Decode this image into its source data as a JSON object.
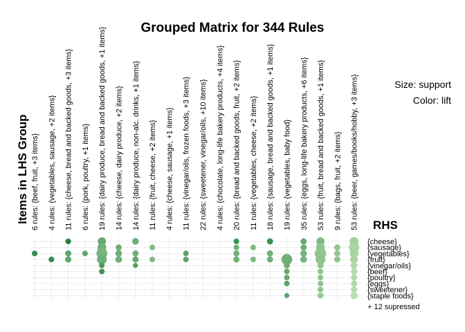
{
  "chart_data": {
    "type": "scatter",
    "title": "Grouped Matrix for 344 Rules",
    "xlabel": "Items in LHS Group",
    "ylabel": "RHS",
    "size_legend": "Size: support",
    "color_legend": "Color: lift",
    "grid": true,
    "lhs_groups": [
      "6 rules: {beef, fruit, +3 items}",
      "4 rules: {vegetables, sausage, +2 items}",
      "11 rules: {cheese, bread and backed goods, +3 items}",
      "6 rules: {pork, poultry, +1 items}",
      "19 rules: {dairy produce, bread and backed goods, +1 items}",
      "14 rules: {cheese, dairy produce, +2 items}",
      "14 rules: {dairy produce, non-alc. drinks, +1 items}",
      "11 rules: {fruit, cheese, +2 items}",
      "4 rules: {cheese, sausage, +1 items}",
      "11 rules: {vinegar/oils, frozen foods, +3 items}",
      "22 rules: {sweetener, vinegar/oils, +10 items}",
      "4 rules: {chocolate, long-life bakery products, +4 items}",
      "20 rules: {bread and backed goods, fruit, +2 items}",
      "11 rules: {vegetables, cheese, +2 items}",
      "18 rules: {sausage, bread and backed goods, +1 items}",
      "19 rules: {vegetables, baby food}",
      "35 rules: {eggs, long-life bakery products, +6 items}",
      "53 rules: {fruit, bread and backed goods, +1 items}",
      "9 rules: {bags, fruit, +2 items}",
      "53 rules: {beer, games/books/hobby, +3 items}"
    ],
    "rhs_items": [
      "{cheese}",
      "{sausage}",
      "{vegetables}",
      "{fruit}",
      "{vinegar/oils}",
      "{beef}",
      "{poultry}",
      "{eggs}",
      "{sweetener}",
      "{staple foods}"
    ],
    "rhs_note": "+ 12 supressed",
    "points": [
      {
        "lhs": 0,
        "rhs": 2,
        "support": 0.3,
        "lift": 0.85
      },
      {
        "lhs": 1,
        "rhs": 3,
        "support": 0.3,
        "lift": 0.85
      },
      {
        "lhs": 2,
        "rhs": 0,
        "support": 0.3,
        "lift": 0.95
      },
      {
        "lhs": 2,
        "rhs": 2,
        "support": 0.35,
        "lift": 0.6
      },
      {
        "lhs": 2,
        "rhs": 3,
        "support": 0.35,
        "lift": 0.6
      },
      {
        "lhs": 3,
        "rhs": 2,
        "support": 0.3,
        "lift": 0.6
      },
      {
        "lhs": 4,
        "rhs": 0,
        "support": 0.55,
        "lift": 0.55
      },
      {
        "lhs": 4,
        "rhs": 1,
        "support": 0.6,
        "lift": 0.5
      },
      {
        "lhs": 4,
        "rhs": 2,
        "support": 0.8,
        "lift": 0.45
      },
      {
        "lhs": 4,
        "rhs": 3,
        "support": 0.7,
        "lift": 0.5
      },
      {
        "lhs": 4,
        "rhs": 4,
        "support": 0.3,
        "lift": 0.7
      },
      {
        "lhs": 4,
        "rhs": 5,
        "support": 0.3,
        "lift": 0.75
      },
      {
        "lhs": 5,
        "rhs": 1,
        "support": 0.35,
        "lift": 0.5
      },
      {
        "lhs": 5,
        "rhs": 2,
        "support": 0.4,
        "lift": 0.5
      },
      {
        "lhs": 5,
        "rhs": 3,
        "support": 0.4,
        "lift": 0.5
      },
      {
        "lhs": 6,
        "rhs": 0,
        "support": 0.4,
        "lift": 0.5
      },
      {
        "lhs": 6,
        "rhs": 2,
        "support": 0.35,
        "lift": 0.5
      },
      {
        "lhs": 6,
        "rhs": 3,
        "support": 0.35,
        "lift": 0.55
      },
      {
        "lhs": 6,
        "rhs": 4,
        "support": 0.25,
        "lift": 0.65
      },
      {
        "lhs": 7,
        "rhs": 1,
        "support": 0.3,
        "lift": 0.4
      },
      {
        "lhs": 7,
        "rhs": 3,
        "support": 0.3,
        "lift": 0.4
      },
      {
        "lhs": 9,
        "rhs": 2,
        "support": 0.3,
        "lift": 0.6
      },
      {
        "lhs": 9,
        "rhs": 3,
        "support": 0.3,
        "lift": 0.6
      },
      {
        "lhs": 12,
        "rhs": 0,
        "support": 0.3,
        "lift": 0.8
      },
      {
        "lhs": 12,
        "rhs": 1,
        "support": 0.3,
        "lift": 0.5
      },
      {
        "lhs": 12,
        "rhs": 2,
        "support": 0.35,
        "lift": 0.5
      },
      {
        "lhs": 12,
        "rhs": 3,
        "support": 0.35,
        "lift": 0.5
      },
      {
        "lhs": 13,
        "rhs": 1,
        "support": 0.3,
        "lift": 0.4
      },
      {
        "lhs": 13,
        "rhs": 3,
        "support": 0.3,
        "lift": 0.4
      },
      {
        "lhs": 14,
        "rhs": 0,
        "support": 0.35,
        "lift": 0.8
      },
      {
        "lhs": 14,
        "rhs": 2,
        "support": 0.35,
        "lift": 0.5
      },
      {
        "lhs": 14,
        "rhs": 3,
        "support": 0.35,
        "lift": 0.5
      },
      {
        "lhs": 15,
        "rhs": 3,
        "support": 0.8,
        "lift": 0.5
      },
      {
        "lhs": 15,
        "rhs": 4,
        "support": 0.35,
        "lift": 0.5
      },
      {
        "lhs": 15,
        "rhs": 5,
        "support": 0.3,
        "lift": 0.55
      },
      {
        "lhs": 15,
        "rhs": 6,
        "support": 0.3,
        "lift": 0.55
      },
      {
        "lhs": 15,
        "rhs": 7,
        "support": 0.3,
        "lift": 0.6
      },
      {
        "lhs": 15,
        "rhs": 9,
        "support": 0.25,
        "lift": 0.6
      },
      {
        "lhs": 16,
        "rhs": 0,
        "support": 0.35,
        "lift": 0.55
      },
      {
        "lhs": 16,
        "rhs": 1,
        "support": 0.35,
        "lift": 0.5
      },
      {
        "lhs": 16,
        "rhs": 2,
        "support": 0.4,
        "lift": 0.45
      },
      {
        "lhs": 16,
        "rhs": 3,
        "support": 0.4,
        "lift": 0.45
      },
      {
        "lhs": 17,
        "rhs": 0,
        "support": 0.55,
        "lift": 0.4
      },
      {
        "lhs": 17,
        "rhs": 1,
        "support": 0.6,
        "lift": 0.3
      },
      {
        "lhs": 17,
        "rhs": 2,
        "support": 0.85,
        "lift": 0.3
      },
      {
        "lhs": 17,
        "rhs": 3,
        "support": 0.7,
        "lift": 0.3
      },
      {
        "lhs": 17,
        "rhs": 4,
        "support": 0.35,
        "lift": 0.3
      },
      {
        "lhs": 17,
        "rhs": 5,
        "support": 0.3,
        "lift": 0.3
      },
      {
        "lhs": 17,
        "rhs": 6,
        "support": 0.3,
        "lift": 0.3
      },
      {
        "lhs": 17,
        "rhs": 7,
        "support": 0.3,
        "lift": 0.3
      },
      {
        "lhs": 17,
        "rhs": 8,
        "support": 0.3,
        "lift": 0.3
      },
      {
        "lhs": 17,
        "rhs": 9,
        "support": 0.35,
        "lift": 0.25
      },
      {
        "lhs": 18,
        "rhs": 1,
        "support": 0.35,
        "lift": 0.3
      },
      {
        "lhs": 18,
        "rhs": 2,
        "support": 0.35,
        "lift": 0.3
      },
      {
        "lhs": 18,
        "rhs": 3,
        "support": 0.35,
        "lift": 0.3
      },
      {
        "lhs": 19,
        "rhs": 0,
        "support": 0.6,
        "lift": 0.2
      },
      {
        "lhs": 19,
        "rhs": 1,
        "support": 0.75,
        "lift": 0.15
      },
      {
        "lhs": 19,
        "rhs": 2,
        "support": 0.6,
        "lift": 0.15
      },
      {
        "lhs": 19,
        "rhs": 3,
        "support": 0.5,
        "lift": 0.15
      },
      {
        "lhs": 19,
        "rhs": 4,
        "support": 0.4,
        "lift": 0.1
      },
      {
        "lhs": 19,
        "rhs": 5,
        "support": 0.35,
        "lift": 0.1
      },
      {
        "lhs": 19,
        "rhs": 6,
        "support": 0.35,
        "lift": 0.1
      },
      {
        "lhs": 19,
        "rhs": 7,
        "support": 0.35,
        "lift": 0.1
      },
      {
        "lhs": 19,
        "rhs": 8,
        "support": 0.35,
        "lift": 0.1
      },
      {
        "lhs": 19,
        "rhs": 9,
        "support": 0.45,
        "lift": 0.05
      }
    ],
    "colors": {
      "low_lift": "#c3e3b4",
      "high_lift": "#1c7a3a",
      "grid": "#c8c8c8"
    }
  }
}
